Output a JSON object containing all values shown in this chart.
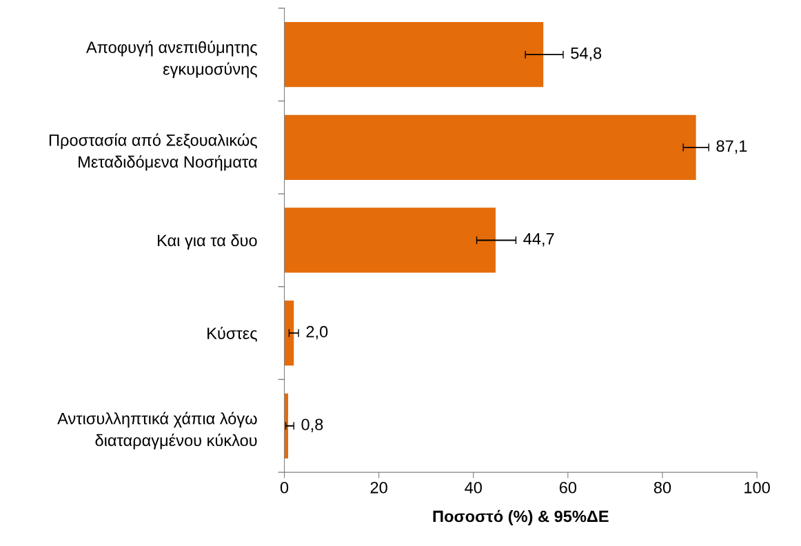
{
  "chart_data": {
    "type": "bar",
    "orientation": "horizontal",
    "categories": [
      "Αποφυγή ανεπιθύμητης\nεγκυμοσύνης",
      "Προστασία από Σεξουαλικώς\nΜεταδιδόμενα Νοσήματα",
      "Και για τα δυο",
      "Κύστες",
      "Αντισυλληπτικά χάπια λόγω\nδιαταραγμένου κύκλου"
    ],
    "values": [
      54.8,
      87.1,
      44.7,
      2.0,
      0.8
    ],
    "errors": [
      [
        51.0,
        59.0
      ],
      [
        84.4,
        89.8
      ],
      [
        40.7,
        49.0
      ],
      [
        1.0,
        3.0
      ],
      [
        0.3,
        2.0
      ]
    ],
    "value_labels": [
      "54,8",
      "87,1",
      "44,7",
      "2,0",
      "0,8"
    ],
    "color": "#e46c0a",
    "xlabel": "Ποσοστό (%) & 95%ΔΕ",
    "xlim": [
      0,
      100
    ],
    "xticks": [
      0,
      20,
      40,
      60,
      80,
      100
    ],
    "grid": false,
    "legend": false
  }
}
